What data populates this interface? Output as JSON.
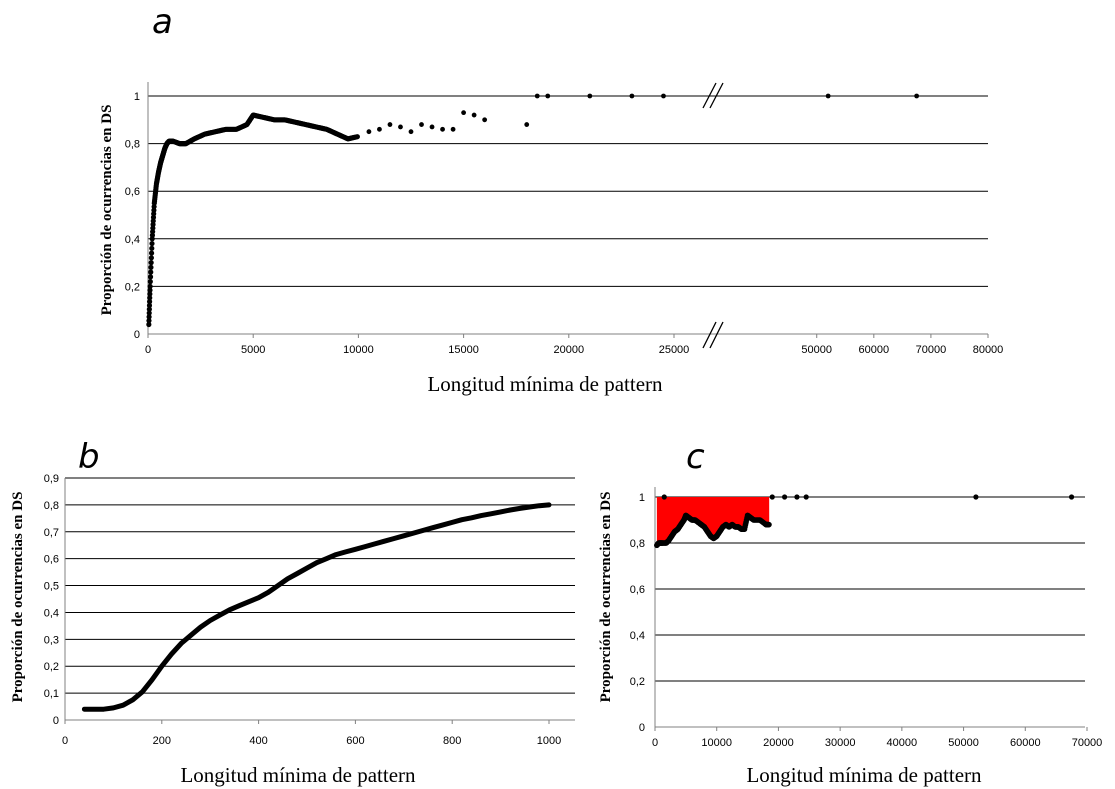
{
  "chart_data": [
    {
      "panel": "a",
      "type": "scatter",
      "xlabel": "Longitud mínima de pattern",
      "ylabel": "Proporción de ocurrencias en DS",
      "ylim": [
        0,
        1
      ],
      "yticks": [
        "0",
        "0,2",
        "0,4",
        "0,6",
        "0,8",
        "1"
      ],
      "xticks": [
        "0",
        "5000",
        "10000",
        "15000",
        "20000",
        "25000",
        "50000",
        "60000",
        "70000",
        "80000"
      ],
      "axis_break": "between 25000 and 50000",
      "grid": true,
      "series": [
        {
          "curve_points": [
            [
              40,
              0.04
            ],
            [
              100,
              0.2
            ],
            [
              200,
              0.4
            ],
            [
              300,
              0.55
            ],
            [
              400,
              0.63
            ],
            [
              500,
              0.68
            ],
            [
              600,
              0.72
            ],
            [
              700,
              0.75
            ],
            [
              800,
              0.78
            ],
            [
              900,
              0.8
            ],
            [
              1000,
              0.81
            ],
            [
              1200,
              0.81
            ],
            [
              1500,
              0.8
            ],
            [
              1800,
              0.8
            ],
            [
              2200,
              0.82
            ],
            [
              2700,
              0.84
            ],
            [
              3200,
              0.85
            ],
            [
              3700,
              0.86
            ],
            [
              4200,
              0.86
            ],
            [
              4700,
              0.88
            ],
            [
              5000,
              0.92
            ],
            [
              5500,
              0.91
            ],
            [
              6000,
              0.9
            ],
            [
              6500,
              0.9
            ],
            [
              7000,
              0.89
            ],
            [
              7500,
              0.88
            ],
            [
              8000,
              0.87
            ],
            [
              8500,
              0.86
            ],
            [
              9000,
              0.84
            ],
            [
              9500,
              0.82
            ],
            [
              10000,
              0.83
            ]
          ],
          "points": [
            [
              10500,
              0.85
            ],
            [
              11000,
              0.86
            ],
            [
              11500,
              0.88
            ],
            [
              12000,
              0.87
            ],
            [
              12500,
              0.85
            ],
            [
              13000,
              0.88
            ],
            [
              13500,
              0.87
            ],
            [
              14000,
              0.86
            ],
            [
              14500,
              0.86
            ],
            [
              15000,
              0.93
            ],
            [
              15500,
              0.92
            ],
            [
              16000,
              0.9
            ],
            [
              18000,
              0.88
            ],
            [
              18500,
              1.0
            ],
            [
              19000,
              1.0
            ],
            [
              21000,
              1.0
            ],
            [
              23000,
              1.0
            ],
            [
              24500,
              1.0
            ],
            [
              52000,
              1.0
            ],
            [
              67500,
              1.0
            ]
          ]
        }
      ]
    },
    {
      "panel": "b",
      "type": "line",
      "xlabel": "Longitud mínima de pattern",
      "ylabel": "Proporción de ocurrencias en DS",
      "xlim": [
        0,
        1000
      ],
      "ylim": [
        0,
        0.9
      ],
      "xticks": [
        "0",
        "200",
        "400",
        "600",
        "800",
        "1000"
      ],
      "yticks": [
        "0",
        "0,1",
        "0,2",
        "0,3",
        "0,4",
        "0,5",
        "0,6",
        "0,7",
        "0,8",
        "0,9"
      ],
      "grid": true,
      "series": [
        {
          "points": [
            [
              40,
              0.04
            ],
            [
              60,
              0.04
            ],
            [
              80,
              0.04
            ],
            [
              100,
              0.045
            ],
            [
              120,
              0.055
            ],
            [
              140,
              0.075
            ],
            [
              160,
              0.105
            ],
            [
              180,
              0.15
            ],
            [
              200,
              0.2
            ],
            [
              220,
              0.245
            ],
            [
              240,
              0.285
            ],
            [
              260,
              0.315
            ],
            [
              280,
              0.345
            ],
            [
              300,
              0.37
            ],
            [
              320,
              0.39
            ],
            [
              340,
              0.41
            ],
            [
              360,
              0.425
            ],
            [
              380,
              0.44
            ],
            [
              400,
              0.455
            ],
            [
              420,
              0.475
            ],
            [
              440,
              0.5
            ],
            [
              460,
              0.525
            ],
            [
              480,
              0.545
            ],
            [
              500,
              0.565
            ],
            [
              520,
              0.585
            ],
            [
              540,
              0.6
            ],
            [
              560,
              0.615
            ],
            [
              580,
              0.625
            ],
            [
              600,
              0.635
            ],
            [
              620,
              0.645
            ],
            [
              640,
              0.655
            ],
            [
              660,
              0.665
            ],
            [
              680,
              0.675
            ],
            [
              700,
              0.685
            ],
            [
              720,
              0.695
            ],
            [
              740,
              0.705
            ],
            [
              760,
              0.715
            ],
            [
              780,
              0.725
            ],
            [
              800,
              0.735
            ],
            [
              820,
              0.745
            ],
            [
              840,
              0.752
            ],
            [
              860,
              0.76
            ],
            [
              880,
              0.767
            ],
            [
              900,
              0.774
            ],
            [
              920,
              0.781
            ],
            [
              940,
              0.787
            ],
            [
              960,
              0.792
            ],
            [
              980,
              0.797
            ],
            [
              1000,
              0.8
            ]
          ]
        }
      ]
    },
    {
      "panel": "c",
      "type": "scatter",
      "xlabel": "Longitud mínima de pattern",
      "ylabel": "Proporción de ocurrencias en DS",
      "xlim": [
        0,
        70000
      ],
      "ylim": [
        0,
        1
      ],
      "xticks": [
        "0",
        "10000",
        "20000",
        "30000",
        "40000",
        "50000",
        "60000",
        "70000"
      ],
      "yticks": [
        "0",
        "0,2",
        "0,4",
        "0,6",
        "0,8",
        "1"
      ],
      "grid": true,
      "fill_color": "#ff0000",
      "fill_region": "between curve and 1, x from 0 to 18500",
      "series": [
        {
          "points": [
            [
              300,
              0.79
            ],
            [
              600,
              0.8
            ],
            [
              900,
              0.8
            ],
            [
              1200,
              0.8
            ],
            [
              1500,
              1.0
            ],
            [
              1800,
              0.8
            ],
            [
              2200,
              0.81
            ],
            [
              2700,
              0.83
            ],
            [
              3200,
              0.85
            ],
            [
              3700,
              0.86
            ],
            [
              4200,
              0.88
            ],
            [
              4700,
              0.9
            ],
            [
              5000,
              0.92
            ],
            [
              5500,
              0.91
            ],
            [
              6000,
              0.9
            ],
            [
              6500,
              0.9
            ],
            [
              7000,
              0.89
            ],
            [
              7500,
              0.88
            ],
            [
              8000,
              0.87
            ],
            [
              8500,
              0.85
            ],
            [
              9000,
              0.83
            ],
            [
              9500,
              0.82
            ],
            [
              10000,
              0.83
            ],
            [
              10500,
              0.85
            ],
            [
              11000,
              0.87
            ],
            [
              11500,
              0.88
            ],
            [
              12000,
              0.87
            ],
            [
              12500,
              0.88
            ],
            [
              13000,
              0.87
            ],
            [
              13500,
              0.87
            ],
            [
              14000,
              0.86
            ],
            [
              14500,
              0.86
            ],
            [
              15000,
              0.92
            ],
            [
              15500,
              0.91
            ],
            [
              16000,
              0.9
            ],
            [
              17000,
              0.9
            ],
            [
              18000,
              0.88
            ],
            [
              18500,
              0.88
            ],
            [
              19000,
              1.0
            ],
            [
              21000,
              1.0
            ],
            [
              23000,
              1.0
            ],
            [
              24500,
              1.0
            ],
            [
              52000,
              1.0
            ],
            [
              67500,
              1.0
            ]
          ]
        }
      ]
    }
  ],
  "panels": {
    "a": {
      "letter": "a",
      "xlabel": "Longitud mínima de pattern",
      "ylabel": "Proporción de ocurrencias en DS"
    },
    "b": {
      "letter": "b",
      "xlabel": "Longitud mínima de pattern",
      "ylabel": "Proporción de ocurrencias en DS"
    },
    "c": {
      "letter": "c",
      "xlabel": "Longitud mínima de pattern",
      "ylabel": "Proporción de ocurrencias en DS"
    }
  }
}
